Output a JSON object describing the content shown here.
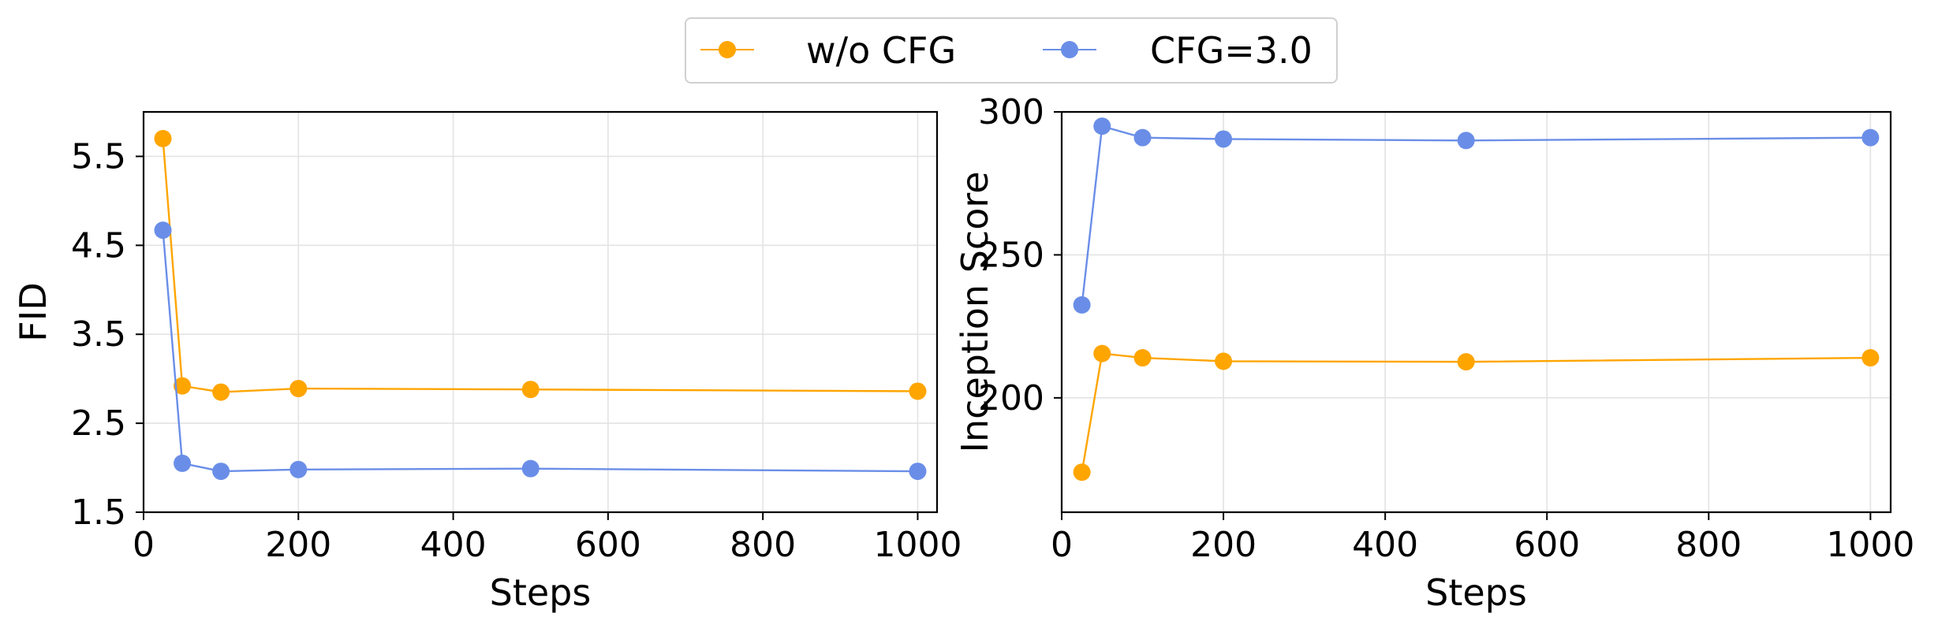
{
  "legend": {
    "items": [
      {
        "label": "w/o CFG",
        "color": "#FFA500"
      },
      {
        "label": "CFG=3.0",
        "color": "#6A8EE8"
      }
    ]
  },
  "chart_data": [
    {
      "type": "line",
      "xlabel": "Steps",
      "ylabel": "FID",
      "xlim": [
        0,
        1025
      ],
      "ylim": [
        1.5,
        6.0
      ],
      "xticks": [
        0,
        200,
        400,
        600,
        800,
        1000
      ],
      "yticks": [
        1.5,
        2.5,
        3.5,
        4.5,
        5.5
      ],
      "ytick_labels": [
        "1.5",
        "2.5",
        "3.5",
        "4.5",
        "5.5"
      ],
      "grid": true,
      "x": [
        25,
        50,
        100,
        200,
        500,
        1000
      ],
      "series": [
        {
          "name": "w/o CFG",
          "color": "#FFA500",
          "values": [
            5.7,
            2.92,
            2.85,
            2.89,
            2.88,
            2.86
          ]
        },
        {
          "name": "CFG=3.0",
          "color": "#6A8EE8",
          "values": [
            4.67,
            2.05,
            1.96,
            1.98,
            1.99,
            1.96
          ]
        }
      ]
    },
    {
      "type": "line",
      "xlabel": "Steps",
      "ylabel": "Inception Score",
      "xlim": [
        0,
        1025
      ],
      "ylim": [
        160,
        300
      ],
      "xticks": [
        0,
        200,
        400,
        600,
        800,
        1000
      ],
      "yticks": [
        200,
        250,
        300
      ],
      "ytick_labels": [
        "200",
        "250",
        "300"
      ],
      "grid": true,
      "x": [
        25,
        50,
        100,
        200,
        500,
        1000
      ],
      "series": [
        {
          "name": "w/o CFG",
          "color": "#FFA500",
          "values": [
            174,
            215.5,
            214,
            212.8,
            212.6,
            214
          ]
        },
        {
          "name": "CFG=3.0",
          "color": "#6A8EE8",
          "values": [
            232.5,
            295,
            291,
            290.5,
            290,
            291
          ]
        }
      ]
    }
  ]
}
